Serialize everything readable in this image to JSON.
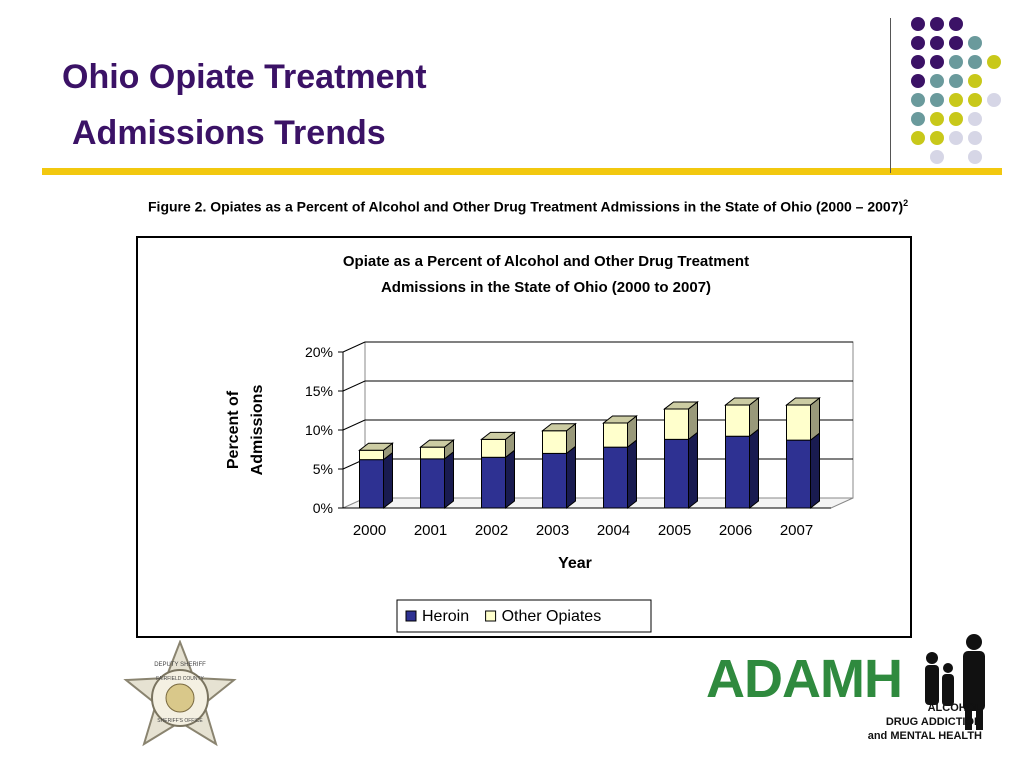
{
  "slide": {
    "title_line1": "Ohio Opiate Treatment",
    "title_line2": "Admissions Trends",
    "caption_text": "Figure 2.  Opiates as a Percent of Alcohol and Other Drug Treatment Admissions in the State of Ohio (2000 – 2007)",
    "caption_superscript": "2"
  },
  "colors": {
    "title": "#3b1266",
    "accent_rule": "#f2c80f",
    "heroin": "#2e3192",
    "other_opiates": "#ffffcc",
    "dot_purple": "#3b1266",
    "dot_teal": "#6a9a9c",
    "dot_yellow": "#c8c81a",
    "dot_lavender": "#d6d6e6",
    "logo_green": "#2f8a3e"
  },
  "chart_data": {
    "type": "bar",
    "stacked": true,
    "three_d": true,
    "title_line1": "Opiate as a Percent of Alcohol and Other Drug Treatment",
    "title_line2": "Admissions in the State of Ohio (2000 to 2007)",
    "xlabel": "Year",
    "ylabel_line1": "Percent of",
    "ylabel_line2": "Admissions",
    "categories": [
      "2000",
      "2001",
      "2002",
      "2003",
      "2004",
      "2005",
      "2006",
      "2007"
    ],
    "yticks": [
      "0%",
      "5%",
      "10%",
      "15%",
      "20%"
    ],
    "ylim": [
      0,
      20
    ],
    "grid": true,
    "legend_position": "bottom",
    "series": [
      {
        "name": "Heroin",
        "values": [
          6.2,
          6.3,
          6.5,
          7.0,
          7.8,
          8.8,
          9.2,
          8.7
        ]
      },
      {
        "name": "Other Opiates",
        "values": [
          1.2,
          1.5,
          2.3,
          2.9,
          3.1,
          3.9,
          4.0,
          4.5
        ]
      }
    ]
  },
  "seal": {
    "top_text": "DEPUTY SHERIFF",
    "ring_text": "FAIRFIELD COUNTY",
    "bottom_text": "SHERIFF'S OFFICE"
  },
  "logo": {
    "word": "ADAMH",
    "line1": "ALCOHOL",
    "line2": "DRUG ADDICTION",
    "line3": "and MENTAL HEALTH"
  }
}
